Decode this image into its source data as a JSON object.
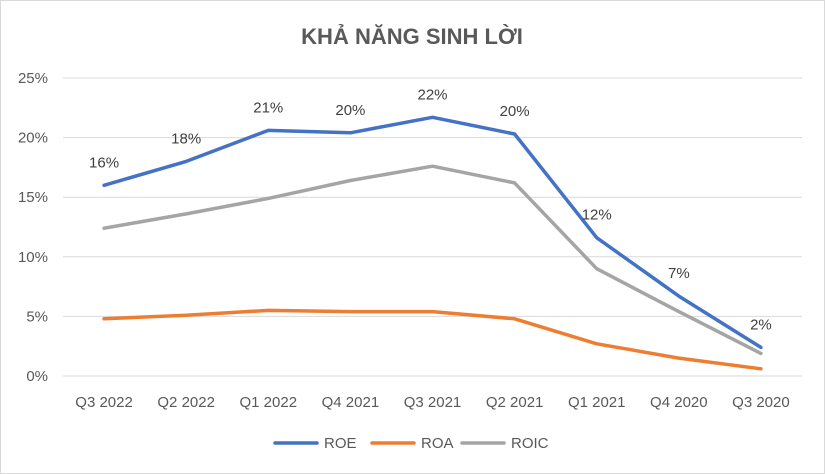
{
  "chart_data": {
    "type": "line",
    "title": "KHẢ NĂNG SINH LỜI",
    "categories": [
      "Q3 2022",
      "Q2 2022",
      "Q1 2022",
      "Q4 2021",
      "Q3 2021",
      "Q2 2021",
      "Q1 2021",
      "Q4 2020",
      "Q3 2020"
    ],
    "ylim": [
      0,
      25
    ],
    "yticks": [
      0,
      5,
      10,
      15,
      20,
      25
    ],
    "ytick_labels": [
      "0%",
      "5%",
      "10%",
      "15%",
      "20%",
      "25%"
    ],
    "grid": true,
    "legend": "bottom",
    "series": [
      {
        "name": "ROE",
        "color": "#4472c4",
        "values": [
          16.0,
          18.0,
          20.6,
          20.4,
          21.7,
          20.3,
          11.6,
          6.7,
          2.4
        ],
        "labels": [
          "16%",
          "18%",
          "21%",
          "20%",
          "22%",
          "20%",
          "12%",
          "7%",
          "2%"
        ]
      },
      {
        "name": "ROA",
        "color": "#ed7d31",
        "values": [
          4.8,
          5.1,
          5.5,
          5.4,
          5.4,
          4.8,
          2.7,
          1.5,
          0.6
        ]
      },
      {
        "name": "ROIC",
        "color": "#a5a5a5",
        "values": [
          12.4,
          13.6,
          14.9,
          16.4,
          17.6,
          16.2,
          9.0,
          5.4,
          1.9
        ]
      }
    ]
  }
}
